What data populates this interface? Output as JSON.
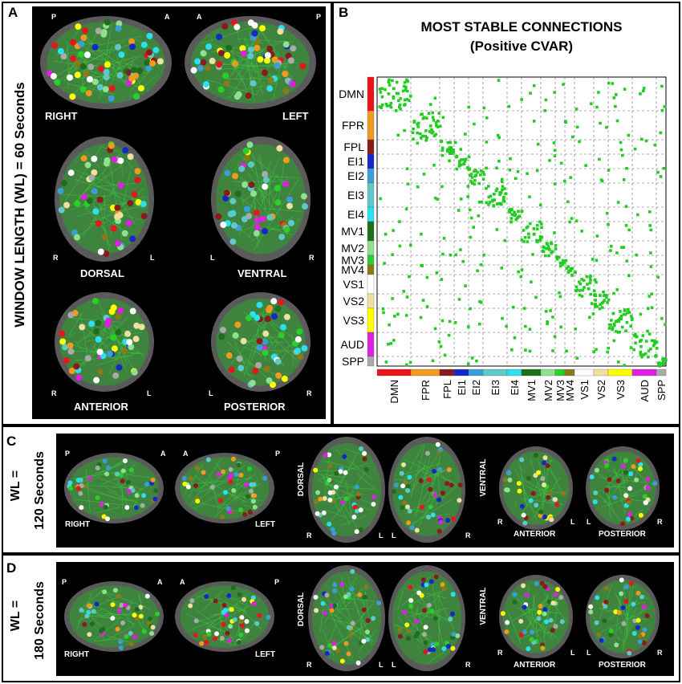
{
  "panels": {
    "A": {
      "letter": "A",
      "side_title": "WINDOW LENGTH (WL)  = 60 Seconds",
      "views": {
        "right": {
          "label": "RIGHT",
          "corner_a": "P",
          "corner_b": "A"
        },
        "left": {
          "label": "LEFT",
          "corner_a": "A",
          "corner_b": "P"
        },
        "dorsal": {
          "label": "DORSAL",
          "corner_a": "R",
          "corner_b": "L"
        },
        "ventral": {
          "label": "VENTRAL",
          "corner_a": "L",
          "corner_b": "R"
        },
        "anterior": {
          "label": "ANTERIOR",
          "corner_a": "R",
          "corner_b": "L"
        },
        "posterior": {
          "label": "POSTERIOR",
          "corner_a": "L",
          "corner_b": "R"
        }
      }
    },
    "B": {
      "letter": "B",
      "title_line1": "MOST STABLE CONNECTIONS",
      "title_line2": "(Positive CVAR)"
    },
    "C": {
      "letter": "C",
      "side_title_1": "WL =",
      "side_title_2": "120 Seconds",
      "views": {
        "right": {
          "label": "RIGHT",
          "corner_a": "P",
          "corner_b": "A"
        },
        "left": {
          "label": "LEFT",
          "corner_a": "A",
          "corner_b": "P"
        },
        "dorsal": {
          "label": "DORSAL",
          "corner_a": "R",
          "corner_b": "L"
        },
        "ventral": {
          "label": "VENTRAL",
          "corner_a": "L",
          "corner_b": "R"
        },
        "anterior": {
          "label": "ANTERIOR",
          "corner_a": "R",
          "corner_b": "L"
        },
        "posterior": {
          "label": "POSTERIOR",
          "corner_a": "L",
          "corner_b": "R"
        }
      }
    },
    "D": {
      "letter": "D",
      "side_title_1": "WL =",
      "side_title_2": "180 Seconds",
      "views": {
        "right": {
          "label": "RIGHT",
          "corner_a": "P",
          "corner_b": "A"
        },
        "left": {
          "label": "LEFT",
          "corner_a": "A",
          "corner_b": "P"
        },
        "dorsal": {
          "label": "DORSAL",
          "corner_a": "R",
          "corner_b": "L"
        },
        "ventral": {
          "label": "VENTRAL",
          "corner_a": "L",
          "corner_b": "R"
        },
        "anterior": {
          "label": "ANTERIOR",
          "corner_a": "R",
          "corner_b": "L"
        },
        "posterior": {
          "label": "POSTERIOR",
          "corner_a": "L",
          "corner_b": "R"
        }
      }
    }
  },
  "chart_data": {
    "type": "heatmap",
    "title": "MOST STABLE CONNECTIONS",
    "subtitle": "(Positive CVAR)",
    "networks": [
      {
        "name": "DMN",
        "color": "#e8161b",
        "size": 7
      },
      {
        "name": "FPR",
        "color": "#f29a20",
        "size": 6
      },
      {
        "name": "FPL",
        "color": "#8b1a1a",
        "size": 3
      },
      {
        "name": "EI1",
        "color": "#1428c8",
        "size": 3
      },
      {
        "name": "EI2",
        "color": "#3a9fd6",
        "size": 3
      },
      {
        "name": "EI3",
        "color": "#5fc8c8",
        "size": 5
      },
      {
        "name": "EI4",
        "color": "#2de0f0",
        "size": 3
      },
      {
        "name": "MV1",
        "color": "#1e6e1e",
        "size": 4
      },
      {
        "name": "MV2",
        "color": "#8fe08f",
        "size": 3
      },
      {
        "name": "MV3",
        "color": "#2ad02a",
        "size": 2
      },
      {
        "name": "MV4",
        "color": "#8a7a1a",
        "size": 2
      },
      {
        "name": "VS1",
        "color": "#ffffff",
        "size": 4
      },
      {
        "name": "VS2",
        "color": "#f0e0a0",
        "size": 3
      },
      {
        "name": "VS3",
        "color": "#ffff00",
        "size": 5
      },
      {
        "name": "AUD",
        "color": "#e020e0",
        "size": 5
      },
      {
        "name": "SPP",
        "color": "#aaaaaa",
        "size": 2
      }
    ],
    "cell_color": "#22cc22"
  },
  "colors": {
    "background": "#000000",
    "brain": "#6a6a6a",
    "network_green": "#2f9a2f"
  }
}
